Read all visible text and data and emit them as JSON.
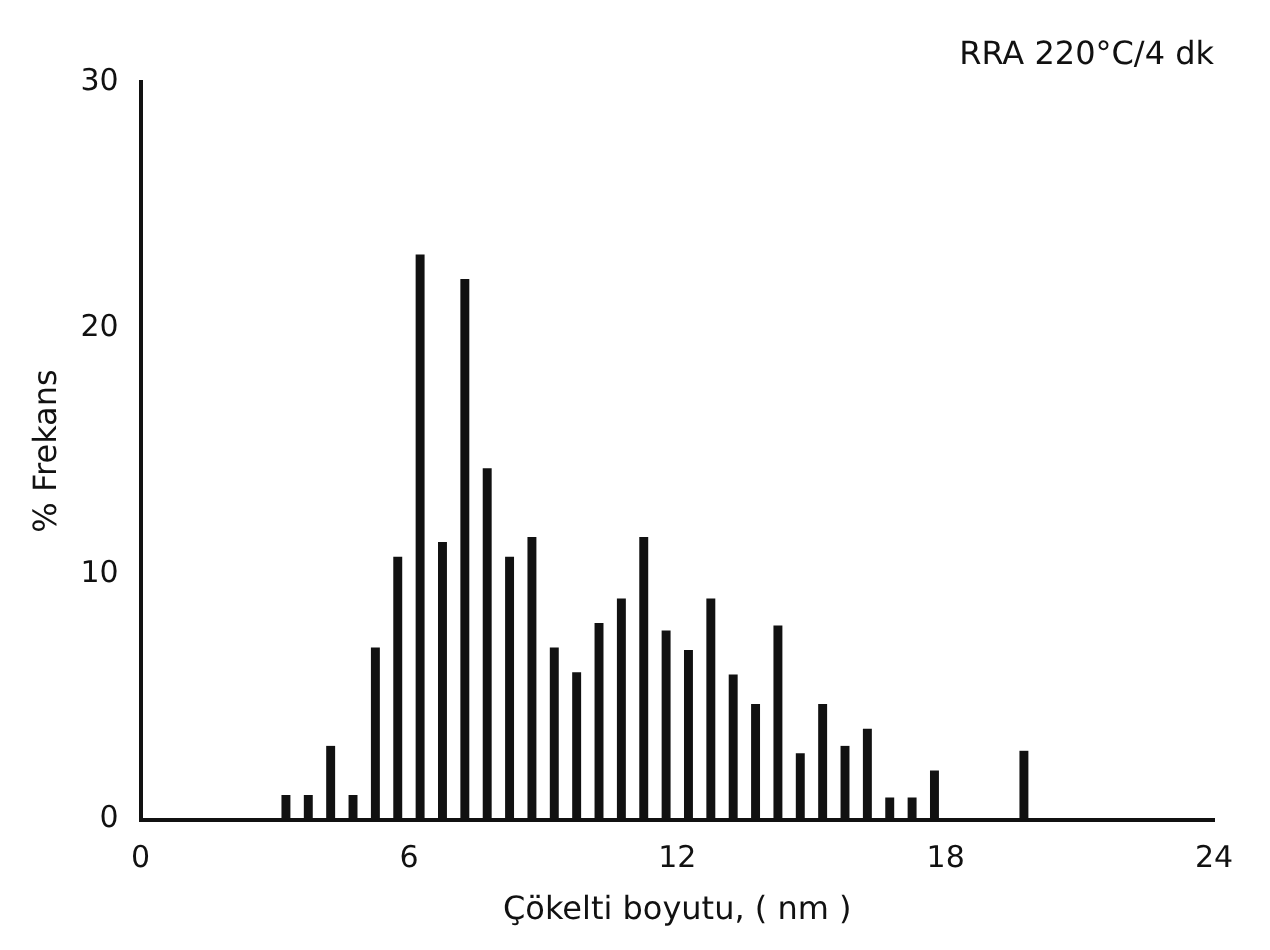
{
  "chart_data": {
    "type": "histogram",
    "title": "RRA 220°C/4 dk",
    "xlabel": "Çökelti boyutu, ( nm )",
    "ylabel": "% Frekans",
    "bins": [
      3.0,
      3.5,
      4.0,
      4.5,
      5.0,
      5.5,
      6.0,
      6.5,
      7.0,
      7.5,
      8.0,
      8.5,
      9.0,
      9.5,
      10.0,
      10.5,
      11.0,
      11.5,
      12.0,
      12.5,
      13.0,
      13.5,
      14.0,
      14.5,
      15.0,
      15.5,
      16.0,
      16.5,
      17.0,
      17.5,
      18.0,
      18.5,
      19.0,
      19.5,
      20.0
    ],
    "values": [
      1,
      1,
      3,
      1,
      7,
      10.7,
      23,
      11.3,
      22,
      14.3,
      10.7,
      11.5,
      7,
      6,
      8,
      9,
      11.5,
      7.7,
      6.9,
      9,
      5.9,
      4.7,
      7.9,
      2.7,
      4.7,
      3,
      3.7,
      0.9,
      0.9,
      2,
      0,
      0,
      0,
      2.8
    ],
    "color": "#111111",
    "xlim": [
      0,
      24
    ],
    "xticks": [
      0,
      6,
      12,
      18,
      24
    ],
    "ylim": [
      0,
      30
    ],
    "yticks": [
      0,
      10,
      20,
      30
    ],
    "grid": false,
    "legend": false
  }
}
